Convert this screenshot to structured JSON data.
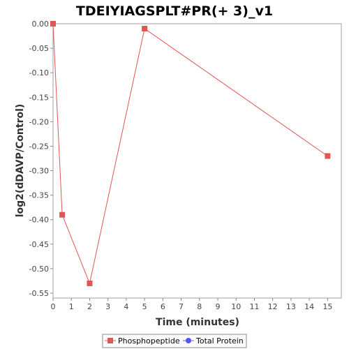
{
  "chart_data": {
    "type": "line",
    "title": "TDEIYIAGSPLT#PR(+ 3)_v1",
    "xlabel": "Time (minutes)",
    "ylabel": "log2(dDAVP/Control)",
    "xlim": [
      0,
      15.75
    ],
    "ylim": [
      -0.56,
      0.0
    ],
    "x_ticks": [
      0,
      1,
      2,
      3,
      4,
      5,
      6,
      7,
      8,
      9,
      10,
      11,
      12,
      13,
      14,
      15
    ],
    "y_ticks": [
      0.0,
      -0.05,
      -0.1,
      -0.15,
      -0.2,
      -0.25,
      -0.3,
      -0.35,
      -0.4,
      -0.45,
      -0.5,
      -0.55
    ],
    "y_tick_labels": [
      "0.00",
      "-0.05",
      "-0.10",
      "-0.15",
      "-0.20",
      "-0.25",
      "-0.30",
      "-0.35",
      "-0.40",
      "-0.45",
      "-0.50",
      "-0.55"
    ],
    "grid": false,
    "legend_position": "bottom",
    "series": [
      {
        "name": "Phosphopeptide",
        "color": "#e05555",
        "marker": "square",
        "points": [
          {
            "x": 0,
            "y": 0.0
          },
          {
            "x": 0.5,
            "y": -0.39
          },
          {
            "x": 2,
            "y": -0.53
          },
          {
            "x": 5,
            "y": -0.01
          },
          {
            "x": 15,
            "y": -0.27
          }
        ]
      },
      {
        "name": "Total Protein",
        "color": "#5555ee",
        "marker": "circle",
        "points": []
      }
    ]
  }
}
